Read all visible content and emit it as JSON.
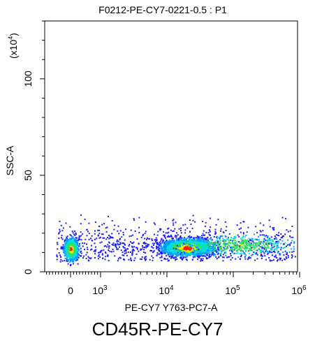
{
  "chart_data": {
    "type": "scatter",
    "subtype": "flow-cytometry-density-dot-plot",
    "title": "F0212-PE-CY7-0221-0.5 : P1",
    "xlabel": "PE-CY7 Y763-PC7-A",
    "ylabel": "SSC-A",
    "y_multiplier_base": "(x10",
    "y_multiplier_exp": "4",
    "y_multiplier_close": ")",
    "x_scale": "biexponential",
    "y_scale": "linear",
    "ylim": [
      0,
      130
    ],
    "y_ticks": [
      0,
      50,
      100
    ],
    "x_ticks": [
      {
        "value": 0,
        "base": "0",
        "exp": ""
      },
      {
        "value": 1000,
        "base": "10",
        "exp": "3"
      },
      {
        "value": 10000,
        "base": "10",
        "exp": "4"
      },
      {
        "value": 100000,
        "base": "10",
        "exp": "5"
      },
      {
        "value": 1000000,
        "base": "10",
        "exp": "6"
      }
    ],
    "populations": [
      {
        "name": "negative cluster",
        "center_x": 0,
        "center_y": 12,
        "density": "high"
      },
      {
        "name": "positive cluster",
        "center_x": 20000,
        "center_y": 13,
        "density": "highest"
      }
    ],
    "density_colors": [
      "#1a1aff",
      "#00a0ff",
      "#00e0e0",
      "#30e060",
      "#e0f000",
      "#ff2000"
    ]
  },
  "footer": {
    "label": "CD45R-PE-CY7"
  }
}
